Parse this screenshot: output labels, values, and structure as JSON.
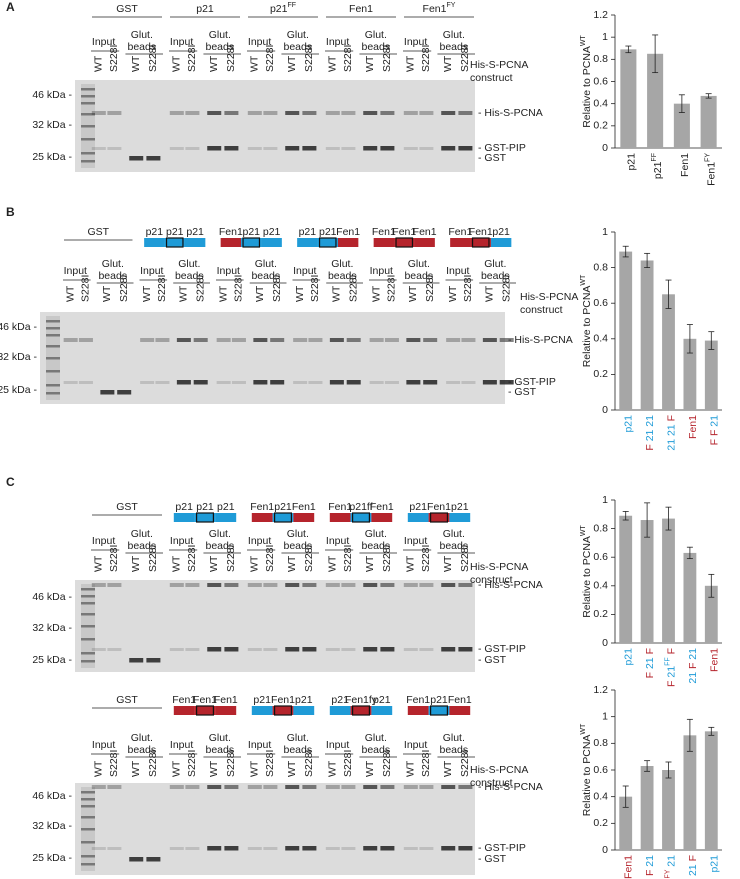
{
  "lanes": [
    "WT",
    "S228I"
  ],
  "fractions": {
    "input": "Input",
    "beads": [
      "Glut.",
      "beads"
    ]
  },
  "construct_label": [
    "His-S-PCNA",
    "construct"
  ],
  "markers": [
    "46 kDa -",
    "32 kDa -",
    "25 kDa -"
  ],
  "bands": [
    "- His-S-PCNA",
    "- GST-PIP",
    "- GST"
  ],
  "panels": [
    {
      "label": "A",
      "gels": [
        {
          "groups": [
            {
              "header": [
                {
                  "text": "GST"
                }
              ]
            },
            {
              "header": [
                {
                  "text": "p21"
                }
              ]
            },
            {
              "header": [
                {
                  "text": "p21"
                },
                {
                  "text": "FF",
                  "sup": true
                }
              ]
            },
            {
              "header": [
                {
                  "text": "Fen1"
                }
              ]
            },
            {
              "header": [
                {
                  "text": "Fen1"
                },
                {
                  "text": "FY",
                  "sup": true
                }
              ]
            }
          ]
        }
      ]
    },
    {
      "label": "B",
      "gels": [
        {
          "groups": [
            {
              "header": [
                {
                  "text": "GST"
                }
              ]
            },
            {
              "construct": [
                {
                  "text": "p21",
                  "color": "#1f9bd7"
                },
                {
                  "text": "p21",
                  "color": "#1f9bd7"
                },
                {
                  "text": "p21",
                  "color": "#1f9bd7"
                }
              ],
              "focus": 1
            },
            {
              "construct": [
                {
                  "text": "Fen1",
                  "color": "#b5242c"
                },
                {
                  "text": "p21",
                  "color": "#1f9bd7"
                },
                {
                  "text": "p21",
                  "color": "#1f9bd7"
                }
              ],
              "focus": 1
            },
            {
              "construct": [
                {
                  "text": "p21",
                  "color": "#1f9bd7"
                },
                {
                  "text": "p21",
                  "color": "#1f9bd7"
                },
                {
                  "text": "Fen1",
                  "color": "#b5242c"
                }
              ],
              "focus": 1
            },
            {
              "construct": [
                {
                  "text": "Fen1",
                  "color": "#b5242c"
                },
                {
                  "text": "Fen1",
                  "color": "#b5242c"
                },
                {
                  "text": "Fen1",
                  "color": "#b5242c"
                }
              ],
              "focus": 1
            },
            {
              "construct": [
                {
                  "text": "Fen1",
                  "color": "#b5242c"
                },
                {
                  "text": "Fen1",
                  "color": "#b5242c"
                },
                {
                  "text": "p21",
                  "color": "#1f9bd7"
                }
              ],
              "focus": 1
            }
          ]
        }
      ]
    },
    {
      "label": "C",
      "gels": [
        {
          "groups": [
            {
              "header": [
                {
                  "text": "GST"
                }
              ]
            },
            {
              "construct": [
                {
                  "text": "p21",
                  "color": "#1f9bd7"
                },
                {
                  "text": "p21",
                  "color": "#1f9bd7"
                },
                {
                  "text": "p21",
                  "color": "#1f9bd7"
                }
              ],
              "focus": 1
            },
            {
              "construct": [
                {
                  "text": "Fen1",
                  "color": "#b5242c"
                },
                {
                  "text": "p21",
                  "color": "#1f9bd7"
                },
                {
                  "text": "Fen1",
                  "color": "#b5242c"
                }
              ],
              "focus": 1
            },
            {
              "construct": [
                {
                  "text": "Fen1",
                  "color": "#b5242c"
                },
                {
                  "text": "p21ff",
                  "color": "#1f9bd7"
                },
                {
                  "text": "Fen1",
                  "color": "#b5242c"
                }
              ],
              "focus": 1
            },
            {
              "construct": [
                {
                  "text": "p21",
                  "color": "#1f9bd7"
                },
                {
                  "text": "Fen1",
                  "color": "#b5242c"
                },
                {
                  "text": "p21",
                  "color": "#1f9bd7"
                }
              ],
              "focus": 1
            }
          ]
        },
        {
          "groups": [
            {
              "header": [
                {
                  "text": "GST"
                }
              ]
            },
            {
              "construct": [
                {
                  "text": "Fen1",
                  "color": "#b5242c"
                },
                {
                  "text": "Fen1",
                  "color": "#b5242c"
                },
                {
                  "text": "Fen1",
                  "color": "#b5242c"
                }
              ],
              "focus": 1
            },
            {
              "construct": [
                {
                  "text": "p21",
                  "color": "#1f9bd7"
                },
                {
                  "text": "Fen1",
                  "color": "#b5242c"
                },
                {
                  "text": "p21",
                  "color": "#1f9bd7"
                }
              ],
              "focus": 1
            },
            {
              "construct": [
                {
                  "text": "p21",
                  "color": "#1f9bd7"
                },
                {
                  "text": "Fen1fy",
                  "color": "#b5242c"
                },
                {
                  "text": "p21",
                  "color": "#1f9bd7"
                }
              ],
              "focus": 1
            },
            {
              "construct": [
                {
                  "text": "Fen1",
                  "color": "#b5242c"
                },
                {
                  "text": "p21",
                  "color": "#1f9bd7"
                },
                {
                  "text": "Fen1",
                  "color": "#b5242c"
                }
              ],
              "focus": 1
            }
          ]
        }
      ]
    }
  ],
  "chart_data": [
    {
      "type": "bar",
      "ylabel": [
        {
          "text": "Relative to PCNA"
        },
        {
          "text": "WT",
          "sup": true
        }
      ],
      "categories": [
        [
          {
            "text": "p21"
          }
        ],
        [
          {
            "text": "p21"
          },
          {
            "text": "FF",
            "sup": true
          }
        ],
        [
          {
            "text": "Fen1"
          }
        ],
        [
          {
            "text": "Fen1"
          },
          {
            "text": "FY",
            "sup": true
          }
        ]
      ],
      "values": [
        0.89,
        0.85,
        0.4,
        0.47
      ],
      "errors": [
        0.03,
        0.17,
        0.08,
        0.02
      ],
      "color": "#a6a6a6",
      "ylim": [
        0,
        1.2
      ],
      "yticks": [
        0,
        0.2,
        0.4,
        0.6,
        0.8,
        1,
        1.2
      ]
    },
    {
      "type": "bar",
      "ylabel": [
        {
          "text": "Relative to PCNA"
        },
        {
          "text": "WT",
          "sup": true
        }
      ],
      "categories": [
        [
          {
            "text": "p21",
            "color": "#1f9bd7"
          }
        ],
        [
          {
            "text": "F",
            "color": "#b5242c"
          },
          {
            "text": "21",
            "color": "#1f9bd7"
          },
          {
            "text": "21",
            "color": "#1f9bd7"
          }
        ],
        [
          {
            "text": "21",
            "color": "#1f9bd7"
          },
          {
            "text": "21",
            "color": "#1f9bd7"
          },
          {
            "text": "F",
            "color": "#b5242c"
          }
        ],
        [
          {
            "text": "Fen1",
            "color": "#b5242c"
          }
        ],
        [
          {
            "text": "F",
            "color": "#b5242c"
          },
          {
            "text": "F",
            "color": "#b5242c"
          },
          {
            "text": "21",
            "color": "#1f9bd7"
          }
        ]
      ],
      "values": [
        0.89,
        0.84,
        0.65,
        0.4,
        0.39
      ],
      "errors": [
        0.03,
        0.04,
        0.08,
        0.08,
        0.05
      ],
      "color": "#a6a6a6",
      "ylim": [
        0,
        1
      ],
      "yticks": [
        0,
        0.2,
        0.4,
        0.6,
        0.8,
        1
      ]
    },
    {
      "type": "bar",
      "ylabel": [
        {
          "text": "Relative to PCNA"
        },
        {
          "text": "WT",
          "sup": true
        }
      ],
      "categories": [
        [
          {
            "text": "p21",
            "color": "#1f9bd7"
          }
        ],
        [
          {
            "text": "F",
            "color": "#b5242c"
          },
          {
            "text": "21",
            "color": "#1f9bd7"
          },
          {
            "text": "F",
            "color": "#b5242c"
          }
        ],
        [
          {
            "text": "F",
            "color": "#b5242c"
          },
          {
            "text": "21",
            "color": "#1f9bd7"
          },
          {
            "text": "FF",
            "color": "#1f9bd7",
            "sup": true
          },
          {
            "text": "F",
            "color": "#b5242c"
          }
        ],
        [
          {
            "text": "21",
            "color": "#1f9bd7"
          },
          {
            "text": "F",
            "color": "#b5242c"
          },
          {
            "text": "21",
            "color": "#1f9bd7"
          }
        ],
        [
          {
            "text": "Fen1",
            "color": "#b5242c"
          }
        ]
      ],
      "values": [
        0.89,
        0.86,
        0.87,
        0.63,
        0.4
      ],
      "errors": [
        0.03,
        0.12,
        0.08,
        0.04,
        0.08
      ],
      "color": "#a6a6a6",
      "ylim": [
        0,
        1
      ],
      "yticks": [
        0,
        0.2,
        0.4,
        0.6,
        0.8,
        1
      ]
    },
    {
      "type": "bar",
      "ylabel": [
        {
          "text": "Relative to PCNA"
        },
        {
          "text": "WT",
          "sup": true
        }
      ],
      "categories": [
        [
          {
            "text": "Fen1",
            "color": "#b5242c"
          }
        ],
        [
          {
            "text": "21",
            "color": "#1f9bd7"
          },
          {
            "text": "F",
            "color": "#b5242c"
          },
          {
            "text": "21",
            "color": "#1f9bd7"
          }
        ],
        [
          {
            "text": "21",
            "color": "#1f9bd7"
          },
          {
            "text": "F",
            "color": "#b5242c"
          },
          {
            "text": "FY",
            "color": "#b5242c",
            "sup": true
          },
          {
            "text": "21",
            "color": "#1f9bd7"
          }
        ],
        [
          {
            "text": "F",
            "color": "#b5242c"
          },
          {
            "text": "21",
            "color": "#1f9bd7"
          },
          {
            "text": "F",
            "color": "#b5242c"
          }
        ],
        [
          {
            "text": "p21",
            "color": "#1f9bd7"
          }
        ]
      ],
      "values": [
        0.4,
        0.63,
        0.6,
        0.86,
        0.89
      ],
      "errors": [
        0.08,
        0.04,
        0.06,
        0.12,
        0.03
      ],
      "color": "#a6a6a6",
      "ylim": [
        0,
        1.2
      ],
      "yticks": [
        0,
        0.2,
        0.4,
        0.6,
        0.8,
        1,
        1.2
      ]
    }
  ]
}
